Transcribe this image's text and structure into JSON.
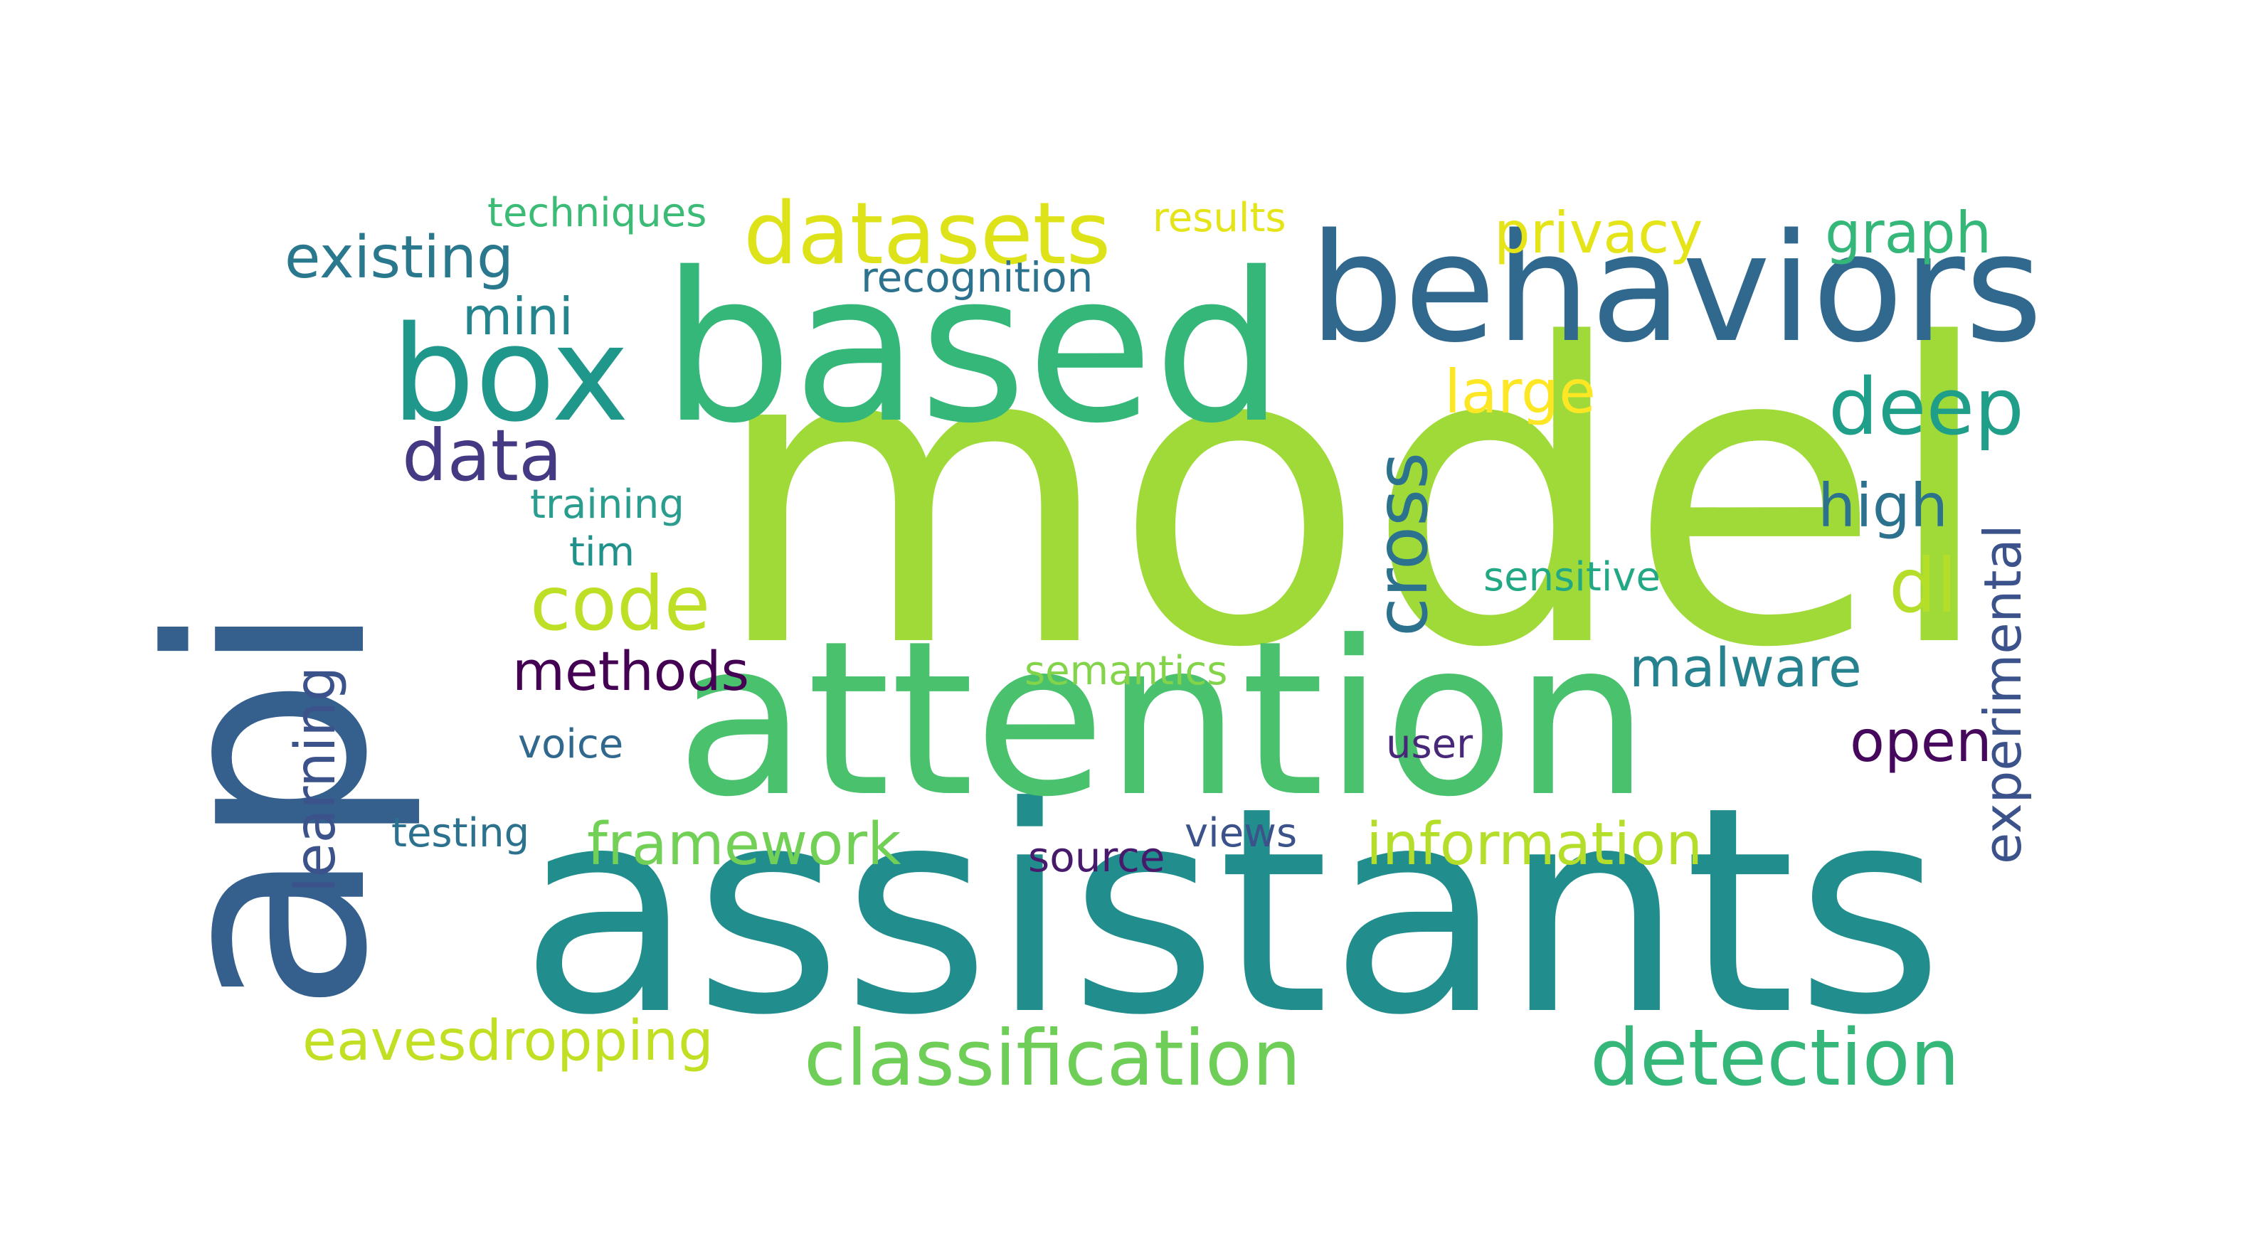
{
  "words": [
    {
      "text": "model",
      "color": "#a0da39"
    },
    {
      "text": "assistants",
      "color": "#218e8d"
    },
    {
      "text": "api",
      "color": "#355f8d"
    },
    {
      "text": "attention",
      "color": "#4ac16d"
    },
    {
      "text": "based",
      "color": "#35b779"
    },
    {
      "text": "behaviors",
      "color": "#31688e"
    },
    {
      "text": "box",
      "color": "#1f988b"
    },
    {
      "text": "datasets",
      "color": "#dde318"
    },
    {
      "text": "existing",
      "color": "#2a788e"
    },
    {
      "text": "techniques",
      "color": "#3bbb75"
    },
    {
      "text": "results",
      "color": "#e5e419"
    },
    {
      "text": "privacy",
      "color": "#e5e419"
    },
    {
      "text": "graph",
      "color": "#35b779"
    },
    {
      "text": "recognition",
      "color": "#2c728e"
    },
    {
      "text": "mini",
      "color": "#25858e"
    },
    {
      "text": "data",
      "color": "#443a83"
    },
    {
      "text": "deep",
      "color": "#1f9e89"
    },
    {
      "text": "large",
      "color": "#fde725"
    },
    {
      "text": "cross",
      "color": "#2c728e"
    },
    {
      "text": "training",
      "color": "#2a9d8f"
    },
    {
      "text": "tim",
      "color": "#21918c"
    },
    {
      "text": "high",
      "color": "#2c728e"
    },
    {
      "text": "experimental",
      "color": "#3b528b"
    },
    {
      "text": "code",
      "color": "#bddf26"
    },
    {
      "text": "dl",
      "color": "#b5de2b"
    },
    {
      "text": "sensitive",
      "color": "#22a884"
    },
    {
      "text": "learning",
      "color": "#3b528b"
    },
    {
      "text": "methods",
      "color": "#440154"
    },
    {
      "text": "semantics",
      "color": "#84d44b"
    },
    {
      "text": "malware",
      "color": "#26828e"
    },
    {
      "text": "voice",
      "color": "#31688e"
    },
    {
      "text": "user",
      "color": "#482878"
    },
    {
      "text": "open",
      "color": "#46085c"
    },
    {
      "text": "testing",
      "color": "#2c728e"
    },
    {
      "text": "framework",
      "color": "#73d056"
    },
    {
      "text": "views",
      "color": "#3b528b"
    },
    {
      "text": "source",
      "color": "#481a6c"
    },
    {
      "text": "information",
      "color": "#b5de2b"
    },
    {
      "text": "eavesdropping",
      "color": "#c2df23"
    },
    {
      "text": "classification",
      "color": "#6ece58"
    },
    {
      "text": "detection",
      "color": "#35b779"
    }
  ]
}
